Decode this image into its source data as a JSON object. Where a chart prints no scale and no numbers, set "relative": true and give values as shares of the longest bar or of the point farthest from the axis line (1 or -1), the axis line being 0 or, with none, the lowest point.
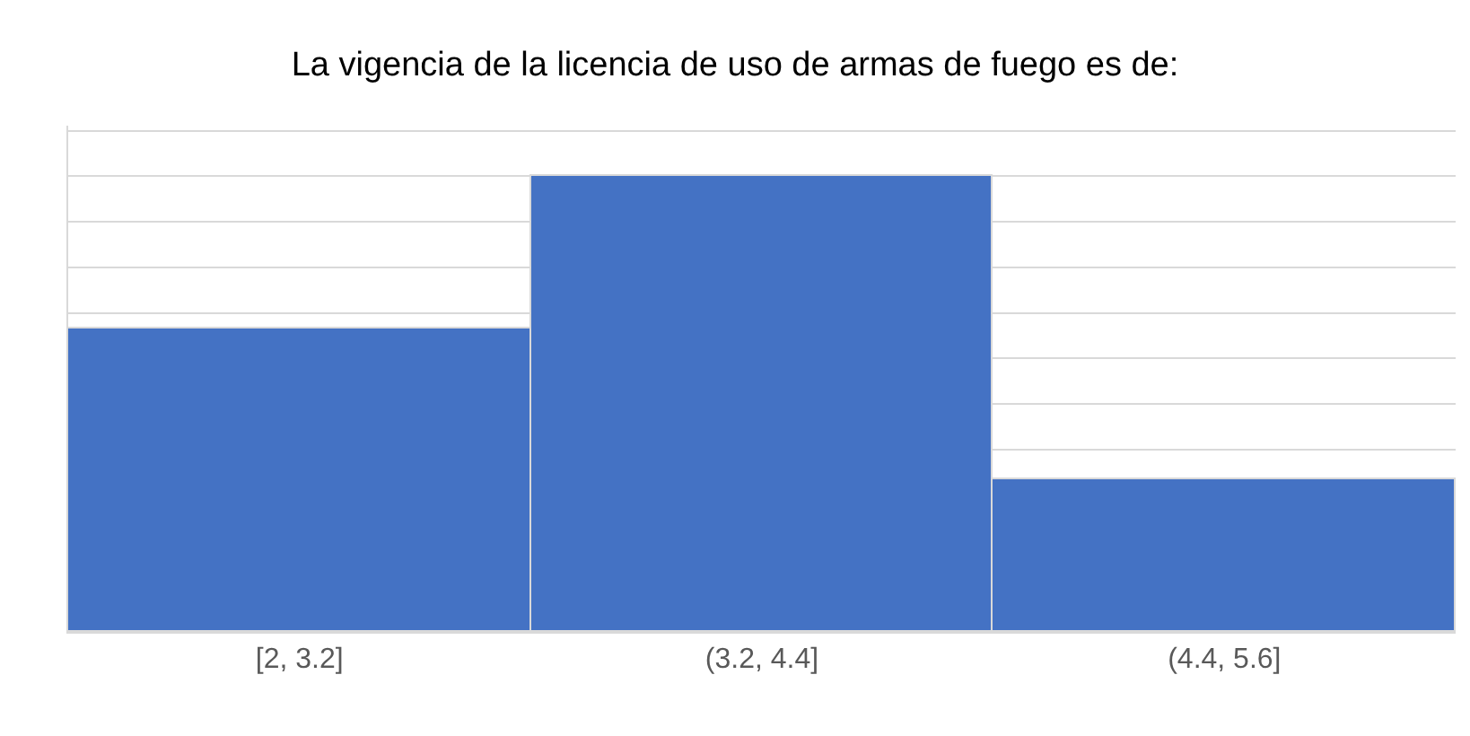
{
  "chart_data": {
    "type": "bar",
    "title": "La vigencia de la licencia de uso de armas de fuego es de:",
    "categories": [
      "[2, 3.2]",
      "(3.2, 4.4]",
      "(4.4, 5.6]"
    ],
    "values": [
      0.667,
      1,
      0.333
    ],
    "relative": true,
    "color": "#4472c4",
    "grid": "y",
    "legend": false
  }
}
